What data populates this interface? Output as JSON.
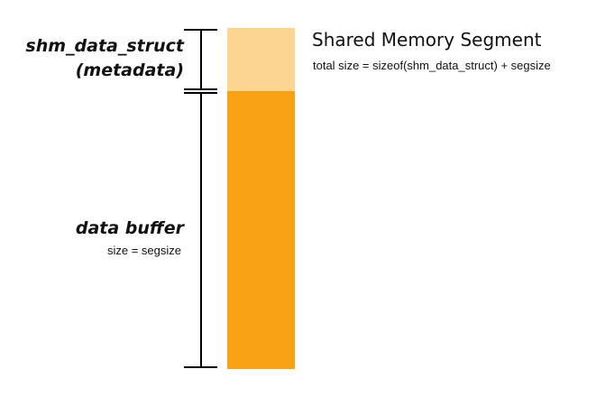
{
  "segment": {
    "title": "Shared Memory Segment",
    "total_size": "total size = sizeof(shm_data_struct) + segsize"
  },
  "metadata_region": {
    "label_line1": "shm_data_struct",
    "label_line2": "(metadata)",
    "color": "#fdd593"
  },
  "buffer_region": {
    "label": "data buffer",
    "size": "size = segsize",
    "color": "#faa216"
  },
  "bracket_color": "#000000"
}
